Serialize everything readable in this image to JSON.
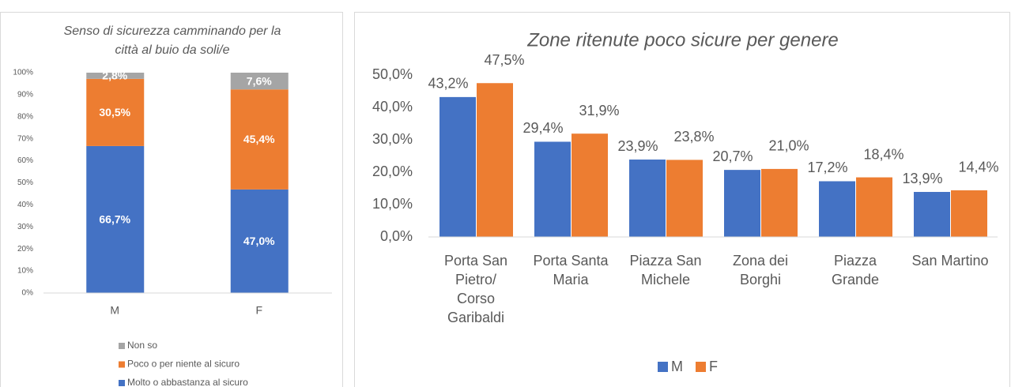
{
  "chart_data": [
    {
      "type": "stacked_bar",
      "title": "Senso di sicurezza camminando per la città al buio da soli/e",
      "categories": [
        "M",
        "F"
      ],
      "series": [
        {
          "name": "Molto o abbastanza al sicuro",
          "color": "#4472c4",
          "values": [
            66.7,
            47.0
          ],
          "value_labels": [
            "66,7%",
            "47,0%"
          ]
        },
        {
          "name": "Poco o per niente al sicuro",
          "color": "#ed7d31",
          "values": [
            30.5,
            45.4
          ],
          "value_labels": [
            "30,5%",
            "45,4%"
          ]
        },
        {
          "name": "Non so",
          "color": "#a5a5a5",
          "values": [
            2.8,
            7.6
          ],
          "value_labels": [
            "2,8%",
            "7,6%"
          ]
        }
      ],
      "ylim": [
        0,
        100
      ],
      "yticks": [
        {
          "value": 0,
          "label": "0%"
        },
        {
          "value": 10,
          "label": "10%"
        },
        {
          "value": 20,
          "label": "20%"
        },
        {
          "value": 30,
          "label": "30%"
        },
        {
          "value": 40,
          "label": "40%"
        },
        {
          "value": 50,
          "label": "50%"
        },
        {
          "value": 60,
          "label": "60%"
        },
        {
          "value": 70,
          "label": "70%"
        },
        {
          "value": 80,
          "label": "80%"
        },
        {
          "value": 90,
          "label": "90%"
        },
        {
          "value": 100,
          "label": "100%"
        }
      ],
      "legend": "bottom"
    },
    {
      "type": "grouped_bar",
      "title": "Zone ritenute poco sicure per genere",
      "categories": [
        "Porta San Pietro/ Corso Garibaldi",
        "Porta Santa Maria",
        "Piazza San Michele",
        "Zona dei Borghi",
        "Piazza Grande",
        "San Martino"
      ],
      "series": [
        {
          "name": "M",
          "color": "#4472c4",
          "values": [
            43.2,
            29.4,
            23.9,
            20.7,
            17.2,
            13.9
          ],
          "value_labels": [
            "43,2%",
            "29,4%",
            "23,9%",
            "20,7%",
            "17,2%",
            "13,9%"
          ]
        },
        {
          "name": "F",
          "color": "#ed7d31",
          "values": [
            47.5,
            31.9,
            23.8,
            21.0,
            18.4,
            14.4
          ],
          "value_labels": [
            "47,5%",
            "31,9%",
            "23,8%",
            "21,0%",
            "18,4%",
            "14,4%"
          ]
        }
      ],
      "ylim": [
        0,
        50
      ],
      "yticks": [
        {
          "value": 0,
          "label": "0,0%"
        },
        {
          "value": 10,
          "label": "10,0%"
        },
        {
          "value": 20,
          "label": "20,0%"
        },
        {
          "value": 30,
          "label": "30,0%"
        },
        {
          "value": 40,
          "label": "40,0%"
        },
        {
          "value": 50,
          "label": "50,0%"
        }
      ],
      "legend": "bottom"
    }
  ]
}
